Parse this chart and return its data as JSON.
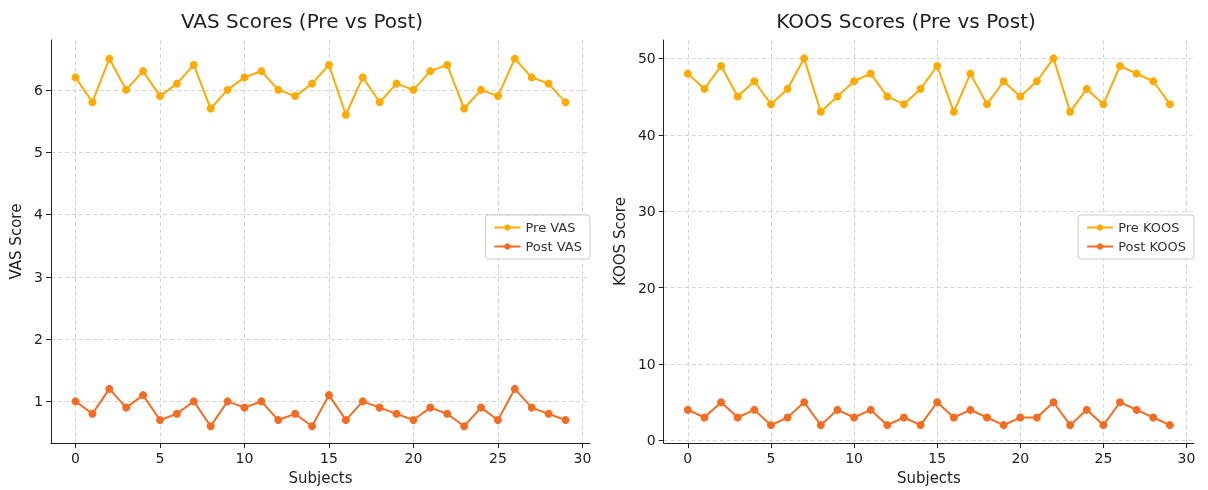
{
  "chart_data": [
    {
      "type": "line",
      "title": "VAS Scores (Pre vs Post)",
      "xlabel": "Subjects",
      "ylabel": "VAS Score",
      "x": [
        0,
        1,
        2,
        3,
        4,
        5,
        6,
        7,
        8,
        9,
        10,
        11,
        12,
        13,
        14,
        15,
        16,
        17,
        18,
        19,
        20,
        21,
        22,
        23,
        24,
        25,
        26,
        27,
        28,
        29
      ],
      "series": [
        {
          "name": "Pre VAS",
          "color": "#ffaa00",
          "values": [
            6.2,
            5.8,
            6.5,
            6.0,
            6.3,
            5.9,
            6.1,
            6.4,
            5.7,
            6.0,
            6.2,
            6.3,
            6.0,
            5.9,
            6.1,
            6.4,
            5.6,
            6.2,
            5.8,
            6.1,
            6.0,
            6.3,
            6.4,
            5.7,
            6.0,
            5.9,
            6.5,
            6.2,
            6.1,
            5.8
          ]
        },
        {
          "name": "Post VAS",
          "color": "#f36c21",
          "values": [
            1.0,
            0.8,
            1.2,
            0.9,
            1.1,
            0.7,
            0.8,
            1.0,
            0.6,
            1.0,
            0.9,
            1.0,
            0.7,
            0.8,
            0.6,
            1.1,
            0.7,
            1.0,
            0.9,
            0.8,
            0.7,
            0.9,
            0.8,
            0.6,
            0.9,
            0.7,
            1.2,
            0.9,
            0.8,
            0.7
          ]
        }
      ],
      "xlim": [
        -1.45,
        30.45
      ],
      "xticks": [
        0,
        5,
        10,
        15,
        20,
        25,
        30
      ],
      "ylim": [
        0.33,
        6.8
      ],
      "yticks": [
        1,
        2,
        3,
        4,
        5,
        6
      ],
      "grid": true,
      "legend": "right",
      "marker": "circle",
      "line_style": "solid"
    },
    {
      "type": "line",
      "title": "KOOS Scores (Pre vs Post)",
      "xlabel": "Subjects",
      "ylabel": "KOOS Score",
      "x": [
        0,
        1,
        2,
        3,
        4,
        5,
        6,
        7,
        8,
        9,
        10,
        11,
        12,
        13,
        14,
        15,
        16,
        17,
        18,
        19,
        20,
        21,
        22,
        23,
        24,
        25,
        26,
        27,
        28,
        29
      ],
      "series": [
        {
          "name": "Pre KOOS",
          "color": "#ffaa00",
          "values": [
            48,
            46,
            49,
            45,
            47,
            44,
            46,
            50,
            43,
            45,
            47,
            48,
            45,
            44,
            46,
            49,
            43,
            48,
            44,
            47,
            45,
            47,
            50,
            43,
            46,
            44,
            49,
            48,
            47,
            44
          ]
        },
        {
          "name": "Post KOOS",
          "color": "#f36c21",
          "values": [
            4,
            3,
            5,
            3,
            4,
            2,
            3,
            5,
            2,
            4,
            3,
            4,
            2,
            3,
            2,
            5,
            3,
            4,
            3,
            2,
            3,
            3,
            5,
            2,
            4,
            2,
            5,
            4,
            3,
            2
          ]
        }
      ],
      "xlim": [
        -1.45,
        30.45
      ],
      "xticks": [
        0,
        5,
        10,
        15,
        20,
        25,
        30
      ],
      "ylim": [
        -0.35,
        52.4
      ],
      "yticks": [
        0,
        10,
        20,
        30,
        40,
        50
      ],
      "grid": true,
      "legend": "right",
      "marker": "circle",
      "line_style": "solid"
    }
  ]
}
